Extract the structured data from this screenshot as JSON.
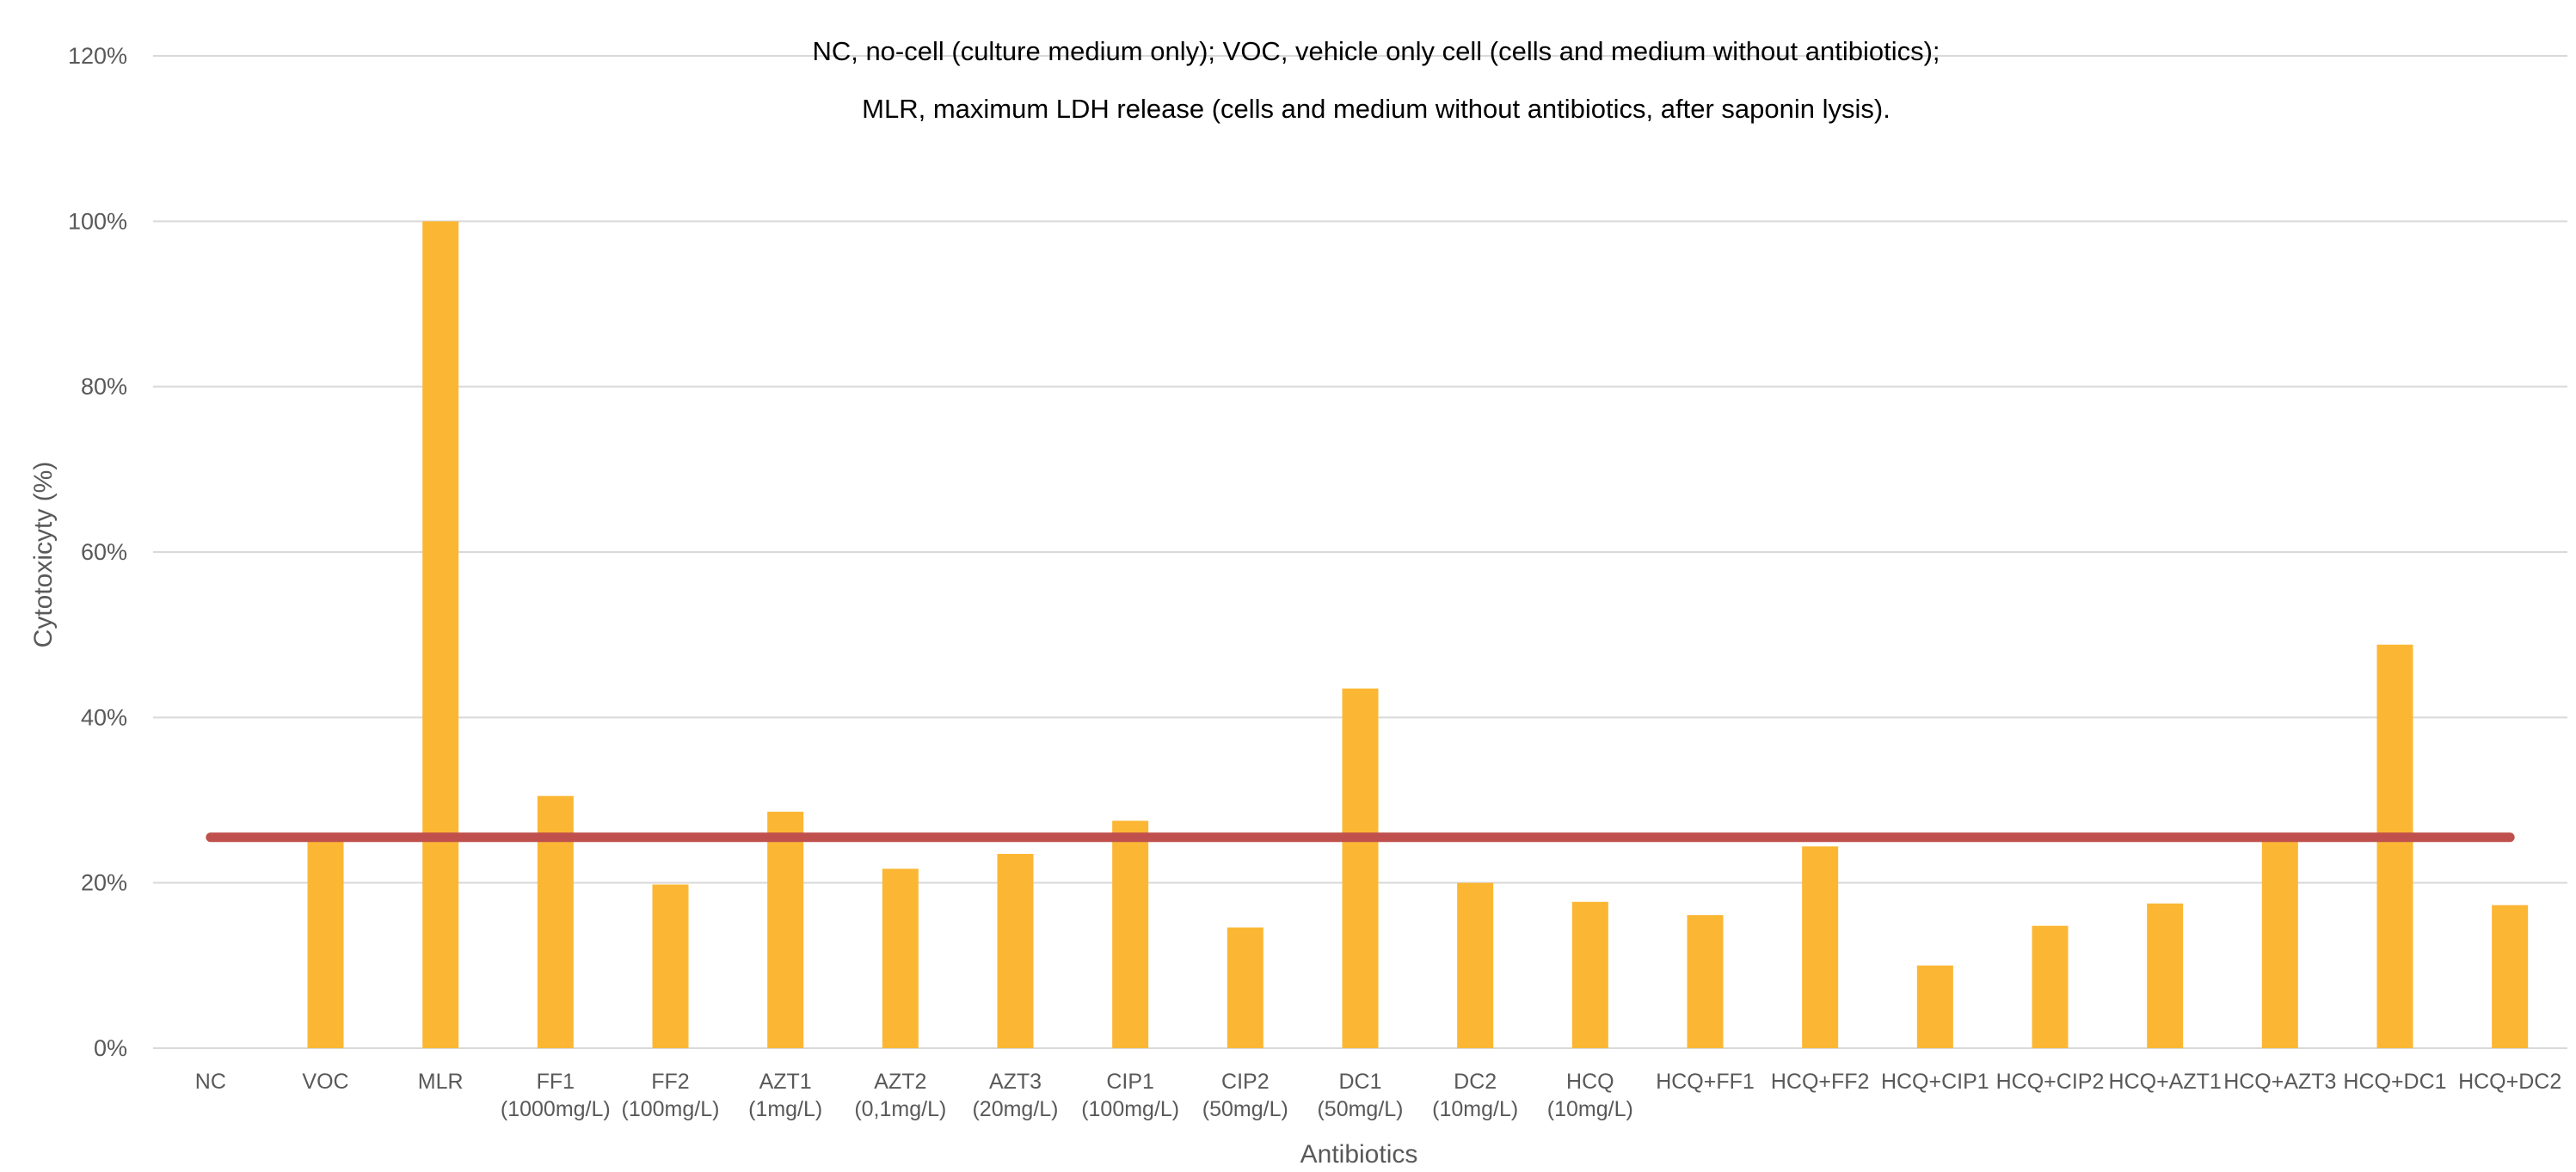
{
  "chart_data": {
    "type": "bar",
    "title": "",
    "annotations": [
      "NC, no-cell (culture medium only); VOC, vehicle only cell (cells and medium without antibiotics);",
      "MLR, maximum LDH release (cells and medium without antibiotics, after saponin lysis)."
    ],
    "xlabel": "Antibiotics",
    "ylabel": "Cytotoxicyty (%)",
    "ylim": [
      0,
      120
    ],
    "yticks": [
      0,
      20,
      40,
      60,
      80,
      100,
      120
    ],
    "ytick_labels": [
      "0%",
      "20%",
      "40%",
      "60%",
      "80%",
      "100%",
      "120%"
    ],
    "grid": true,
    "legend": "none",
    "categories": [
      [
        "NC"
      ],
      [
        "VOC"
      ],
      [
        "MLR"
      ],
      [
        "FF1",
        "(1000mg/L)"
      ],
      [
        "FF2",
        "(100mg/L)"
      ],
      [
        "AZT1",
        "(1mg/L)"
      ],
      [
        "AZT2",
        "(0,1mg/L)"
      ],
      [
        "AZT3",
        "(20mg/L)"
      ],
      [
        "CIP1",
        "(100mg/L)"
      ],
      [
        "CIP2",
        "(50mg/L)"
      ],
      [
        "DC1",
        "(50mg/L)"
      ],
      [
        "DC2",
        "(10mg/L)"
      ],
      [
        "HCQ",
        "(10mg/L)"
      ],
      [
        "HCQ+FF1"
      ],
      [
        "HCQ+FF2"
      ],
      [
        "HCQ+CIP1"
      ],
      [
        "HCQ+CIP2"
      ],
      [
        "HCQ+AZT1"
      ],
      [
        "HCQ+AZT3"
      ],
      [
        "HCQ+DC1"
      ],
      [
        "HCQ+DC2"
      ]
    ],
    "values": [
      0,
      25.5,
      100,
      30.5,
      19.8,
      28.6,
      21.7,
      23.5,
      27.5,
      14.6,
      43.5,
      20.0,
      17.7,
      16.1,
      24.4,
      10.0,
      14.8,
      17.5,
      25.5,
      48.8,
      17.3
    ],
    "reference_line": {
      "value": 25.5
    },
    "colors": {
      "bar": "#FBB734",
      "reference_line": "#C0504D",
      "grid": "#D9D9D9",
      "axis": "#D9D9D9",
      "tick_text": "#595959"
    }
  }
}
